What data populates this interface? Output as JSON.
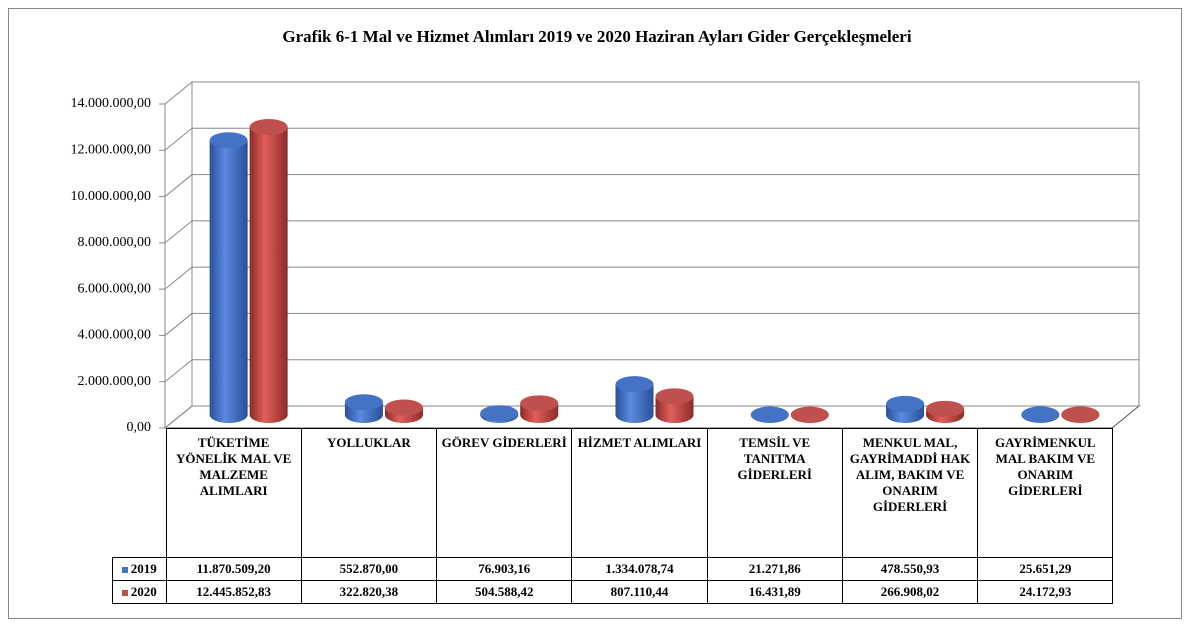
{
  "chart_data": {
    "type": "bar3d",
    "title": "Grafik 6-1 Mal ve Hizmet Alımları  2019 ve 2020  Haziran Ayları Gider Gerçekleşmeleri",
    "categories": [
      "TÜKETİME YÖNELİK MAL VE MALZEME ALIMLARI",
      "YOLLUKLAR",
      "GÖREV GİDERLERİ",
      "HİZMET ALIMLARI",
      "TEMSİL VE TANITMA GİDERLERİ",
      "MENKUL MAL, GAYRİMADDİ HAK ALIM, BAKIM VE ONARIM GİDERLERİ",
      "GAYRİMENKUL MAL BAKIM VE ONARIM GİDERLERİ"
    ],
    "series": [
      {
        "name": "2019",
        "color": "#4472c4",
        "values": [
          11870509.2,
          552870.0,
          76903.16,
          1334078.74,
          21271.86,
          478550.93,
          25651.29
        ],
        "value_labels": [
          "11.870.509,20",
          "552.870,00",
          "76.903,16",
          "1.334.078,74",
          "21.271,86",
          "478.550,93",
          "25.651,29"
        ]
      },
      {
        "name": "2020",
        "color": "#c0504d",
        "values": [
          12445852.83,
          322820.38,
          504588.42,
          807110.44,
          16431.89,
          266908.02,
          24172.93
        ],
        "value_labels": [
          "12.445.852,83",
          "322.820,38",
          "504.588,42",
          "807.110,44",
          "16.431,89",
          "266.908,02",
          "24.172,93"
        ]
      }
    ],
    "ylim": [
      0,
      14000000
    ],
    "yticks": [
      {
        "value": 0,
        "label": "0,00"
      },
      {
        "value": 2000000,
        "label": "2.000.000,00"
      },
      {
        "value": 4000000,
        "label": "4.000.000,00"
      },
      {
        "value": 6000000,
        "label": "6.000.000,00"
      },
      {
        "value": 8000000,
        "label": "8.000.000,00"
      },
      {
        "value": 10000000,
        "label": "10.000.000,00"
      },
      {
        "value": 12000000,
        "label": "12.000.000,00"
      },
      {
        "value": 14000000,
        "label": "14.000.000,00"
      }
    ],
    "grid": true
  }
}
